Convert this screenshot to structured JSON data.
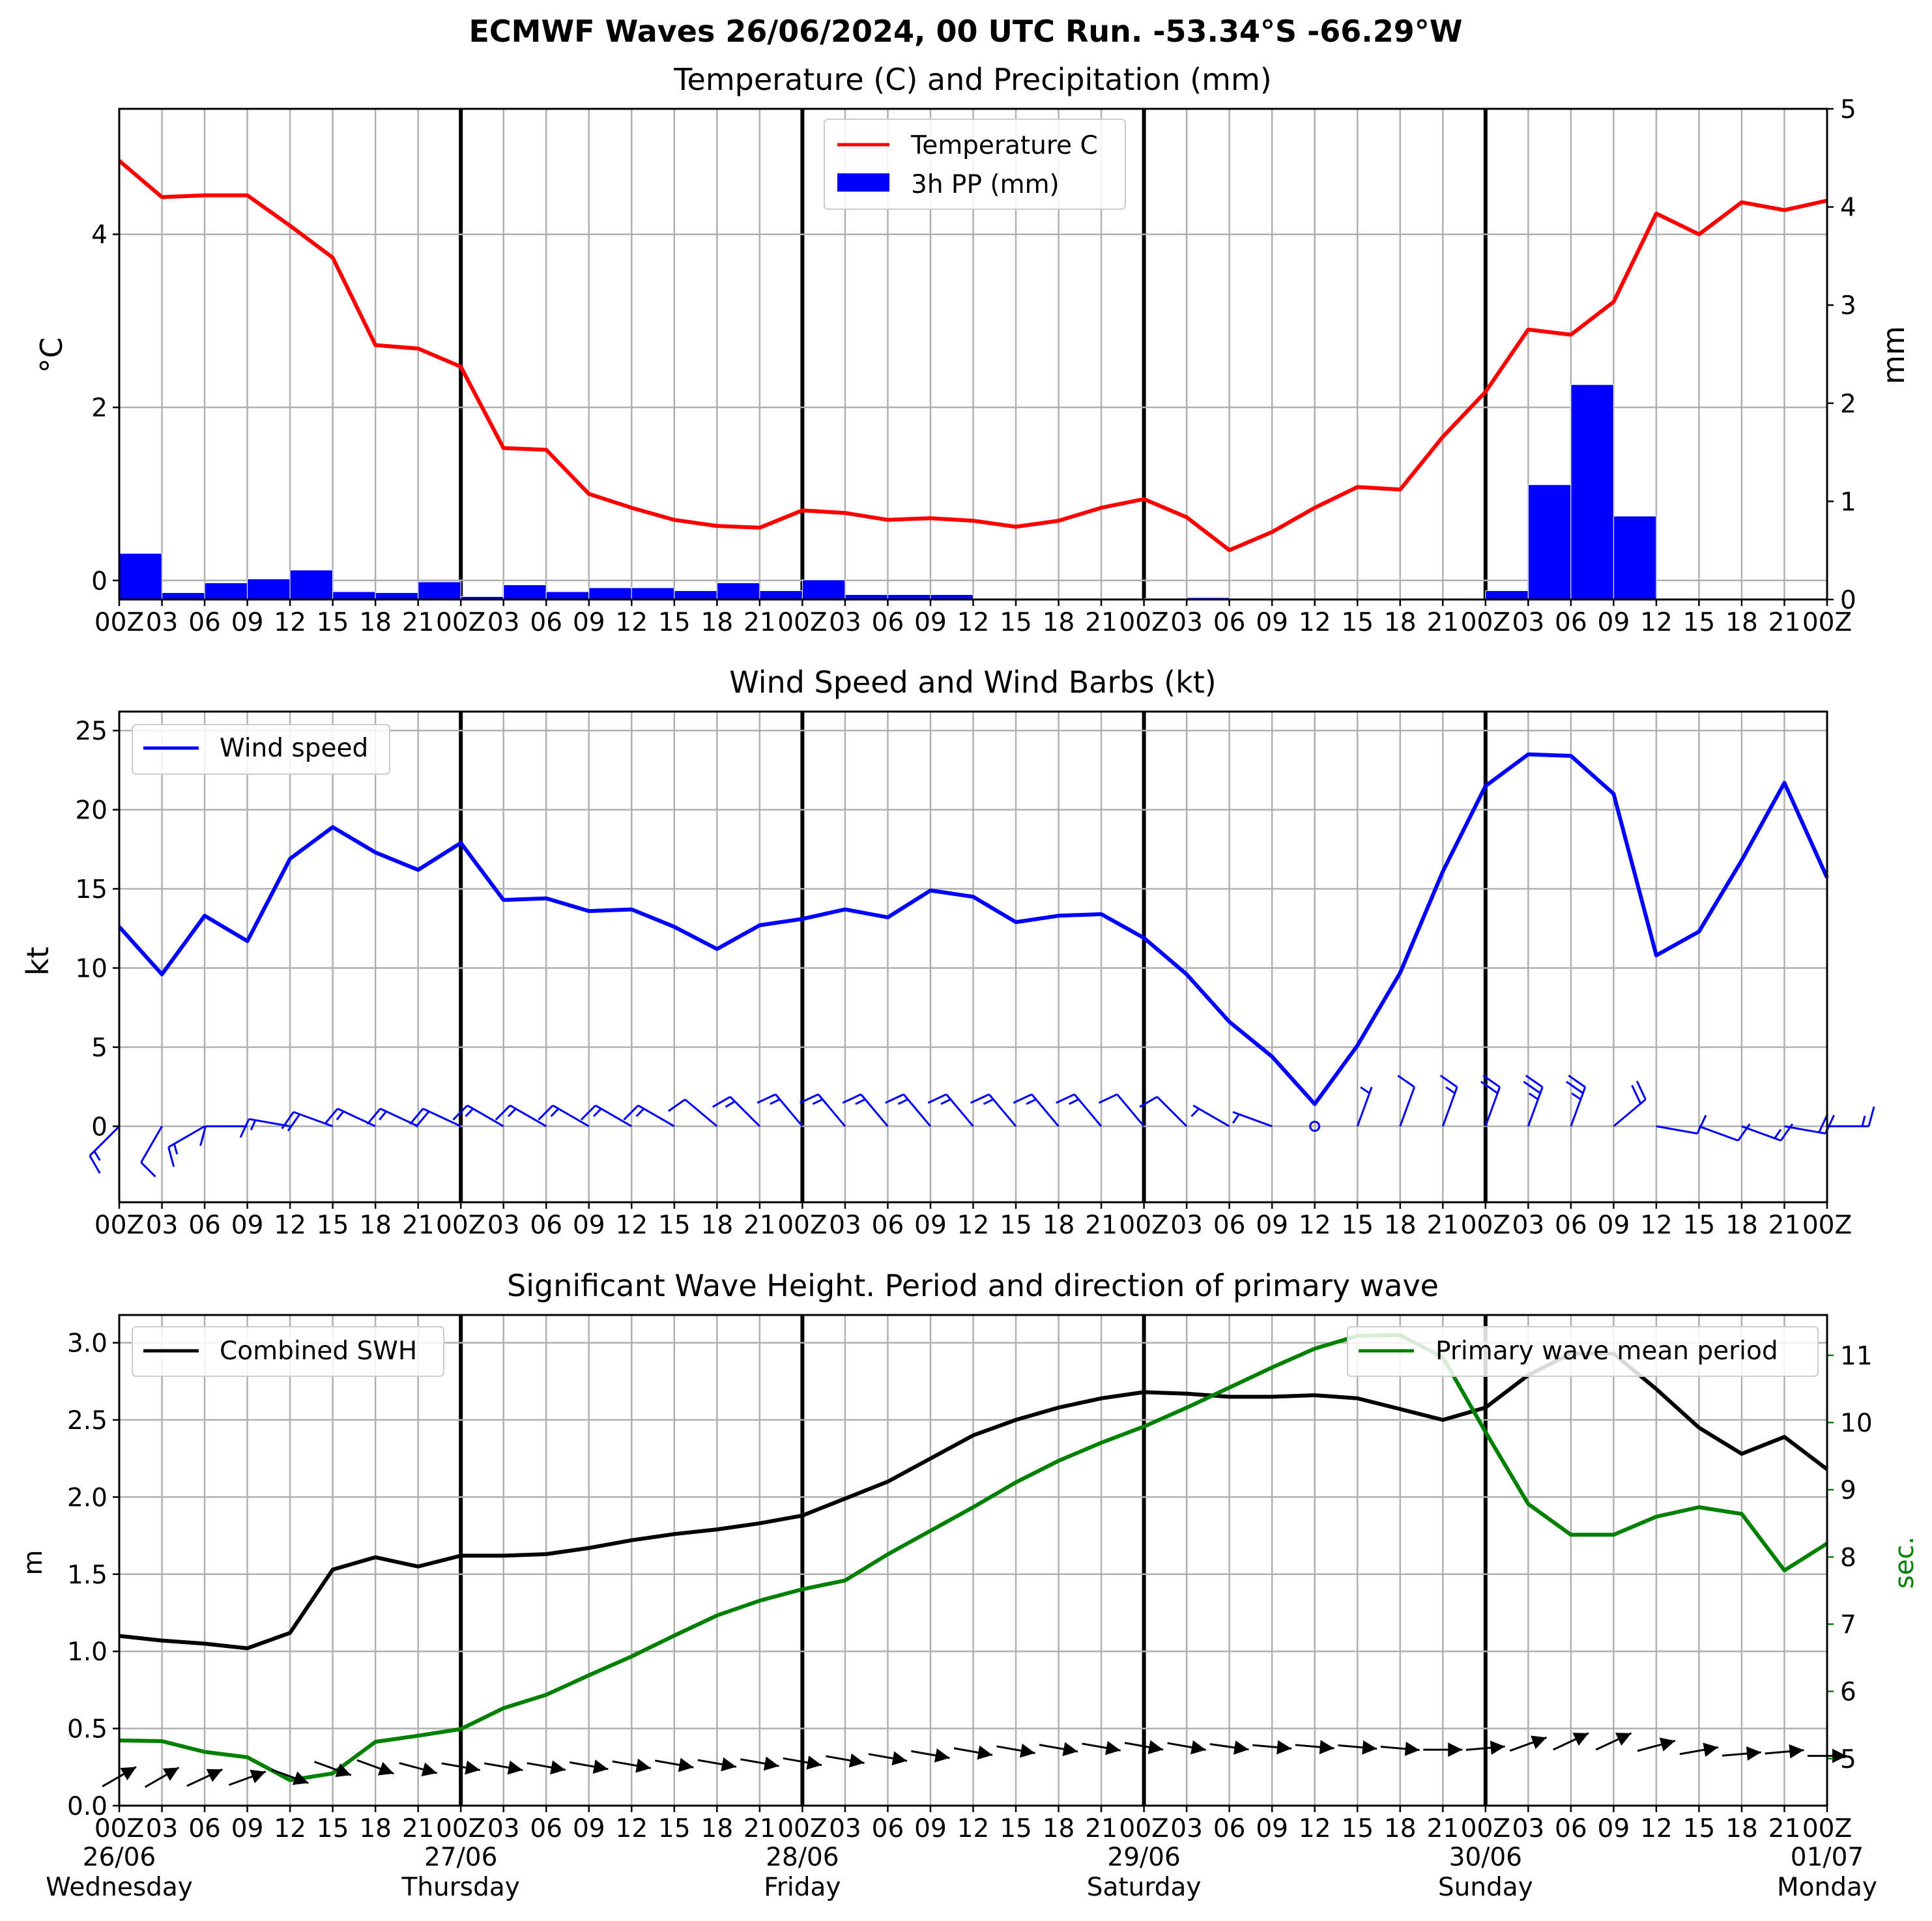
{
  "figure": {
    "suptitle": "ECMWF Waves 26/06/2024, 00 UTC Run. -53.34°S -66.29°W"
  },
  "x_axis": {
    "hour_labels": [
      "00Z",
      "03",
      "06",
      "09",
      "12",
      "15",
      "18",
      "21",
      "00Z",
      "03",
      "06",
      "09",
      "12",
      "15",
      "18",
      "21",
      "00Z",
      "03",
      "06",
      "09",
      "12",
      "15",
      "18",
      "21",
      "00Z",
      "03",
      "06",
      "09",
      "12",
      "15",
      "18",
      "21",
      "00Z",
      "03",
      "06",
      "09",
      "12",
      "15",
      "18",
      "21",
      "00Z"
    ],
    "days": [
      {
        "date": "26/06",
        "weekday": "Wednesday"
      },
      {
        "date": "27/06",
        "weekday": "Thursday"
      },
      {
        "date": "28/06",
        "weekday": "Friday"
      },
      {
        "date": "29/06",
        "weekday": "Saturday"
      },
      {
        "date": "30/06",
        "weekday": "Sunday"
      },
      {
        "date": "01/07",
        "weekday": "Monday"
      }
    ]
  },
  "colors": {
    "temperature": "#ff0000",
    "precipitation": "#0000ff",
    "wind": "#0000ff",
    "swh": "#000000",
    "period": "#008000",
    "grid": "#b0b0b0"
  },
  "chart_data": [
    {
      "type": "line",
      "title": "Temperature (C) and Precipitation (mm)",
      "ylabel": "°C",
      "ylabel_right": "mm",
      "legend_position": "upper center",
      "ylim": [
        -0.22,
        5.45
      ],
      "ylim_right": [
        0,
        5
      ],
      "yticks": [
        0,
        2,
        4
      ],
      "yticks_right": [
        0,
        1,
        2,
        3,
        4,
        5
      ],
      "series": [
        {
          "name": "Temperature C",
          "axis": "left",
          "values": [
            4.85,
            4.43,
            4.45,
            4.45,
            4.1,
            3.73,
            2.72,
            2.68,
            2.47,
            1.53,
            1.51,
            1.0,
            0.84,
            0.7,
            0.63,
            0.61,
            0.81,
            0.78,
            0.7,
            0.72,
            0.69,
            0.62,
            0.69,
            0.84,
            0.94,
            0.73,
            0.35,
            0.56,
            0.84,
            1.08,
            1.05,
            1.66,
            2.18,
            2.9,
            2.84,
            3.22,
            4.24,
            4.0,
            4.37,
            4.28,
            4.39
          ]
        },
        {
          "name": "3h PP (mm)",
          "axis": "right",
          "type": "bar",
          "values": [
            0.47,
            0.07,
            0.17,
            0.21,
            0.3,
            0.08,
            0.07,
            0.18,
            0.03,
            0.15,
            0.08,
            0.12,
            0.12,
            0.09,
            0.17,
            0.09,
            0.2,
            0.05,
            0.05,
            0.05,
            0.0,
            0.01,
            0.01,
            0.0,
            0.01,
            0.02,
            0.0,
            0.0,
            0.0,
            0.0,
            0.0,
            0.0,
            0.09,
            1.17,
            2.19,
            0.85,
            0.0,
            0.0,
            0.0,
            0.0
          ]
        }
      ]
    },
    {
      "type": "line",
      "title": "Wind Speed and Wind Barbs (kt)",
      "ylabel": "kt",
      "legend_position": "upper left",
      "ylim": [
        -4.8,
        26.2
      ],
      "yticks": [
        0,
        5,
        10,
        15,
        20,
        25
      ],
      "series": [
        {
          "name": "Wind speed",
          "values": [
            12.6,
            9.6,
            13.3,
            11.7,
            16.9,
            18.9,
            17.3,
            16.2,
            17.9,
            14.3,
            14.4,
            13.6,
            13.7,
            12.6,
            11.2,
            12.7,
            13.1,
            13.7,
            13.2,
            14.9,
            14.5,
            12.9,
            13.3,
            13.4,
            11.9,
            9.6,
            6.6,
            4.4,
            1.4,
            5.1,
            9.7,
            16.1,
            21.5,
            23.5,
            23.4,
            21.0,
            10.8,
            12.3,
            16.8,
            21.7,
            15.7
          ]
        }
      ],
      "wind_barb_directions_from_deg": [
        225,
        210,
        240,
        270,
        280,
        290,
        295,
        295,
        295,
        300,
        300,
        300,
        300,
        300,
        310,
        315,
        320,
        320,
        320,
        320,
        320,
        320,
        320,
        320,
        320,
        315,
        300,
        290,
        0,
        20,
        20,
        20,
        20,
        20,
        20,
        50,
        100,
        110,
        110,
        100,
        90
      ]
    },
    {
      "type": "line",
      "title": "Significant Wave Height. Period and direction of primary wave",
      "ylabel": "m",
      "ylabel_right": "sec.",
      "ylim": [
        0,
        3.18
      ],
      "ylim_right": [
        4.3,
        11.6
      ],
      "yticks": [
        0.0,
        0.5,
        1.0,
        1.5,
        2.0,
        2.5,
        3.0
      ],
      "yticks_right": [
        5,
        6,
        7,
        8,
        9,
        10,
        11
      ],
      "series": [
        {
          "name": "Combined SWH",
          "axis": "left",
          "legend_position": "upper left",
          "values": [
            1.1,
            1.07,
            1.05,
            1.02,
            1.12,
            1.53,
            1.61,
            1.55,
            1.62,
            1.62,
            1.63,
            1.67,
            1.72,
            1.76,
            1.79,
            1.83,
            1.88,
            1.99,
            2.1,
            2.25,
            2.4,
            2.5,
            2.58,
            2.64,
            2.68,
            2.67,
            2.65,
            2.65,
            2.66,
            2.64,
            2.57,
            2.5,
            2.58,
            2.79,
            2.93,
            2.93,
            2.7,
            2.45,
            2.28,
            2.39,
            2.18
          ]
        },
        {
          "name": "Primary wave mean period",
          "axis": "right",
          "legend_position": "upper right",
          "values": [
            5.27,
            5.26,
            5.1,
            5.02,
            4.68,
            4.78,
            5.25,
            5.34,
            5.44,
            5.75,
            5.95,
            6.24,
            6.52,
            6.83,
            7.13,
            7.35,
            7.52,
            7.65,
            8.04,
            8.39,
            8.74,
            9.11,
            9.43,
            9.7,
            9.94,
            10.22,
            10.52,
            10.82,
            11.1,
            11.29,
            11.3,
            10.97,
            9.86,
            8.79,
            8.33,
            8.33,
            8.6,
            8.74,
            8.64,
            7.8,
            8.2
          ]
        }
      ],
      "wave_direction_from_deg": [
        240,
        240,
        245,
        250,
        290,
        290,
        290,
        285,
        280,
        280,
        280,
        280,
        280,
        280,
        280,
        280,
        280,
        280,
        280,
        280,
        280,
        280,
        280,
        280,
        280,
        280,
        278,
        275,
        275,
        275,
        275,
        270,
        265,
        250,
        245,
        245,
        255,
        260,
        265,
        265,
        270
      ]
    }
  ]
}
